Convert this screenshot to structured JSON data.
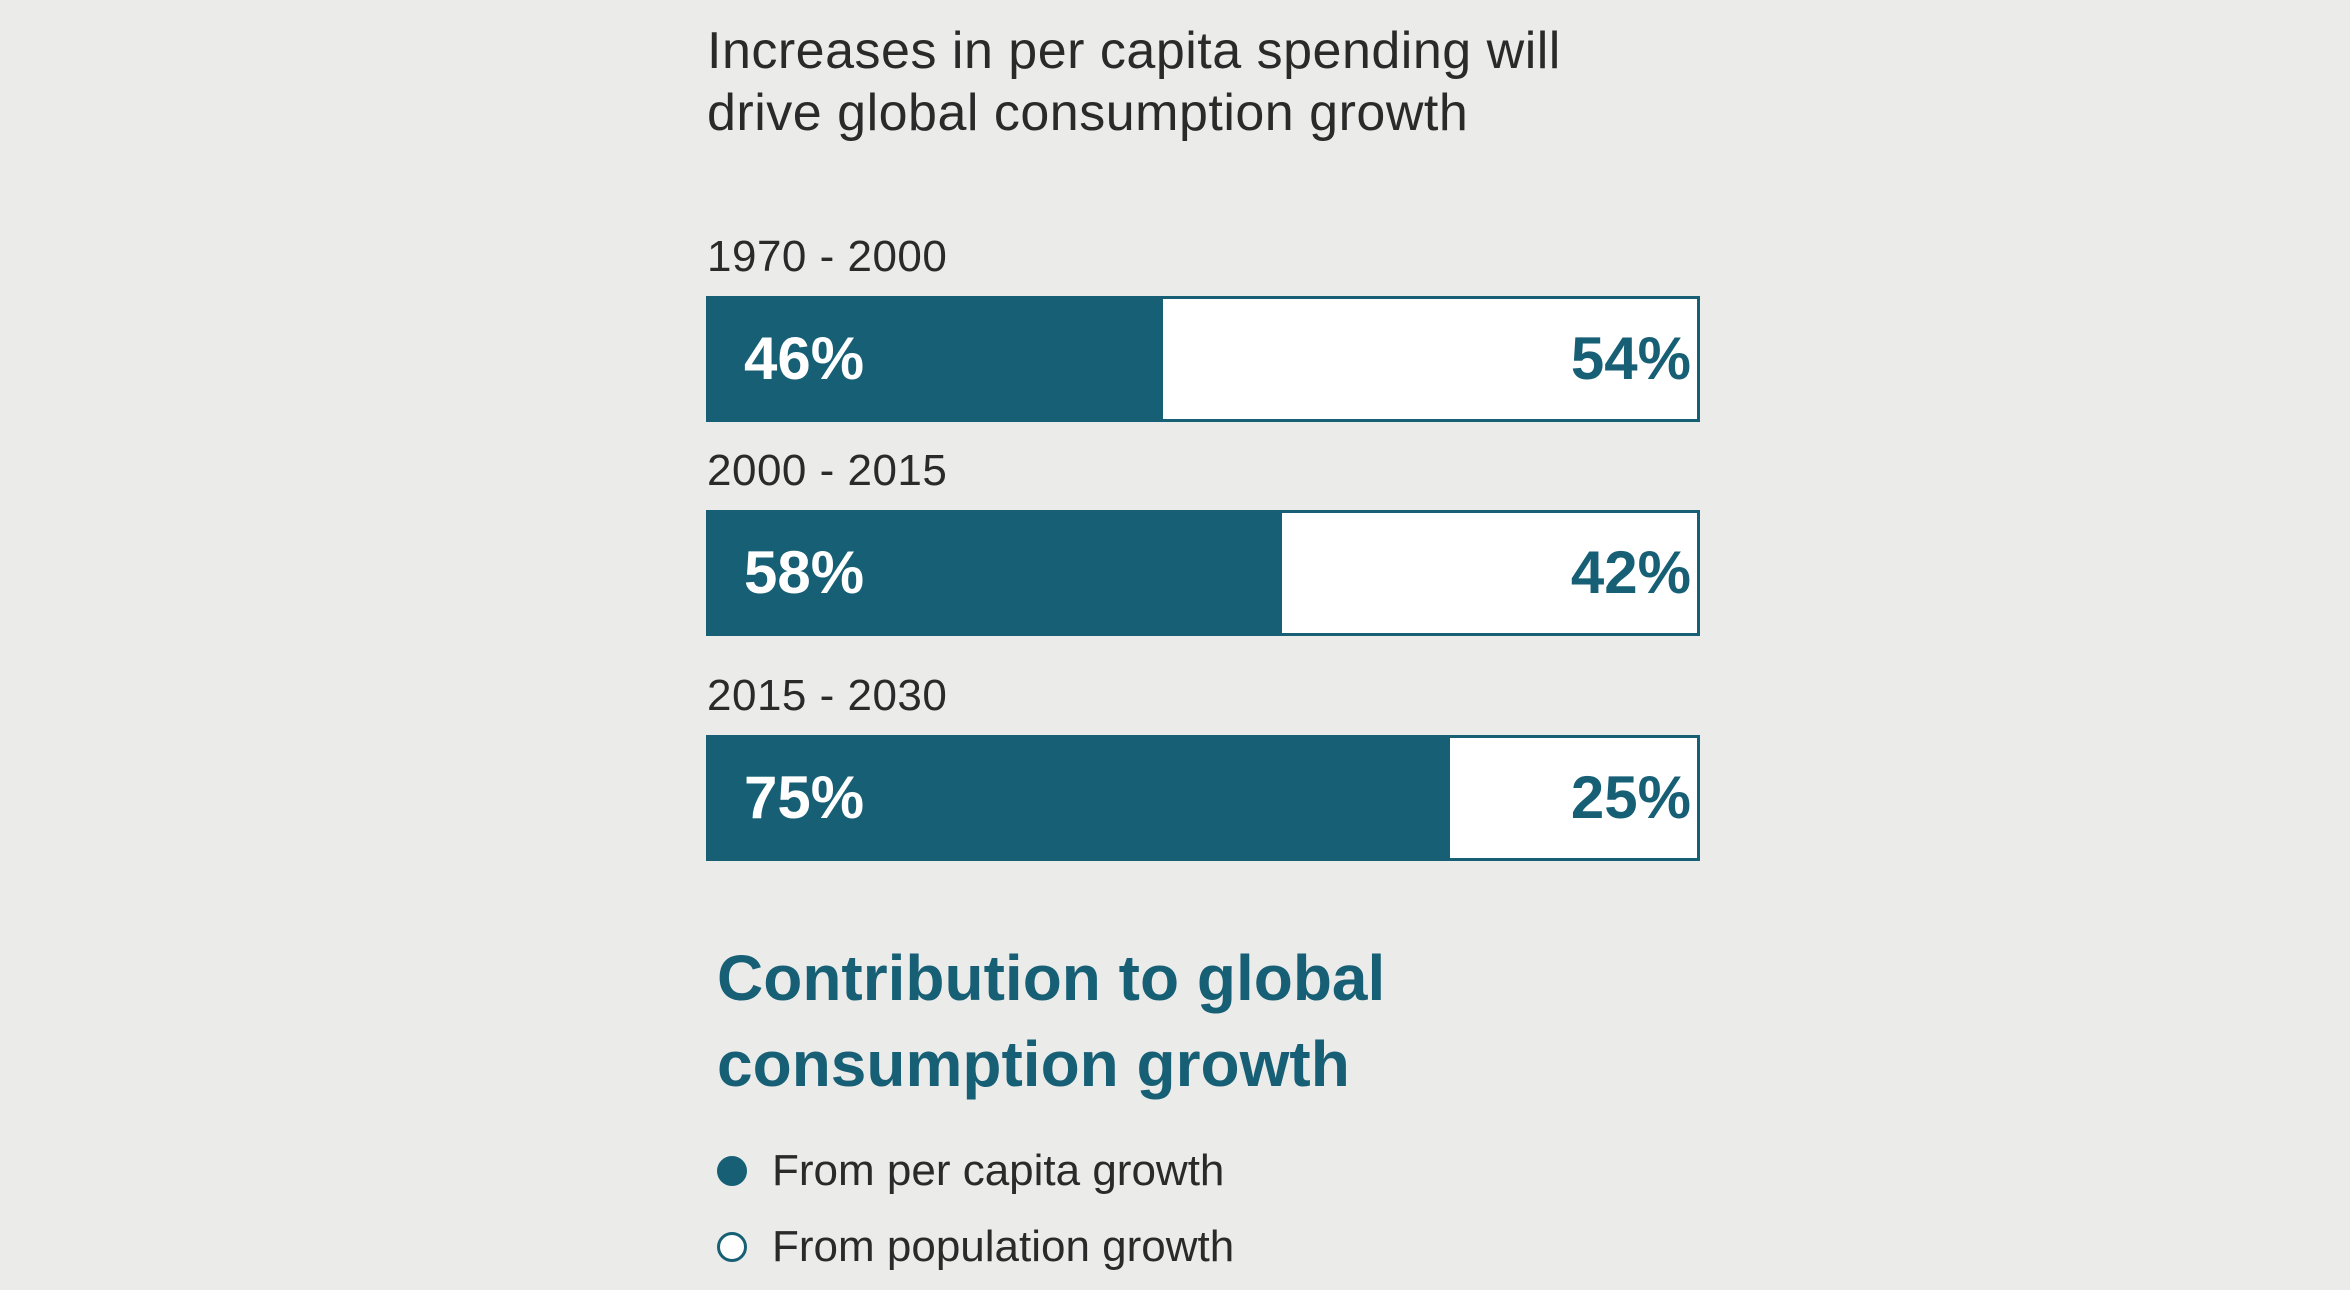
{
  "title": {
    "line1": "Increases in per capita spending will",
    "line2": "drive global consumption growth"
  },
  "chart_data": {
    "type": "bar",
    "stacked": true,
    "orientation": "horizontal",
    "categories": [
      "1970 - 2000",
      "2000 - 2015",
      "2015 - 2030"
    ],
    "series": [
      {
        "name": "From per capita growth",
        "values": [
          46,
          58,
          75
        ],
        "labels": [
          "46%",
          "58%",
          "75%"
        ],
        "color": "#165f75"
      },
      {
        "name": "From population growth",
        "values": [
          54,
          42,
          25
        ],
        "labels": [
          "54%",
          "42%",
          "25%"
        ],
        "color": "#ffffff"
      }
    ],
    "xlim": [
      0,
      100
    ],
    "title": "Contribution to global consumption growth"
  },
  "legend": {
    "title_line1": "Contribution to global",
    "title_line2": "consumption growth",
    "items": [
      {
        "label": "From per capita growth"
      },
      {
        "label": "From population growth"
      }
    ]
  }
}
